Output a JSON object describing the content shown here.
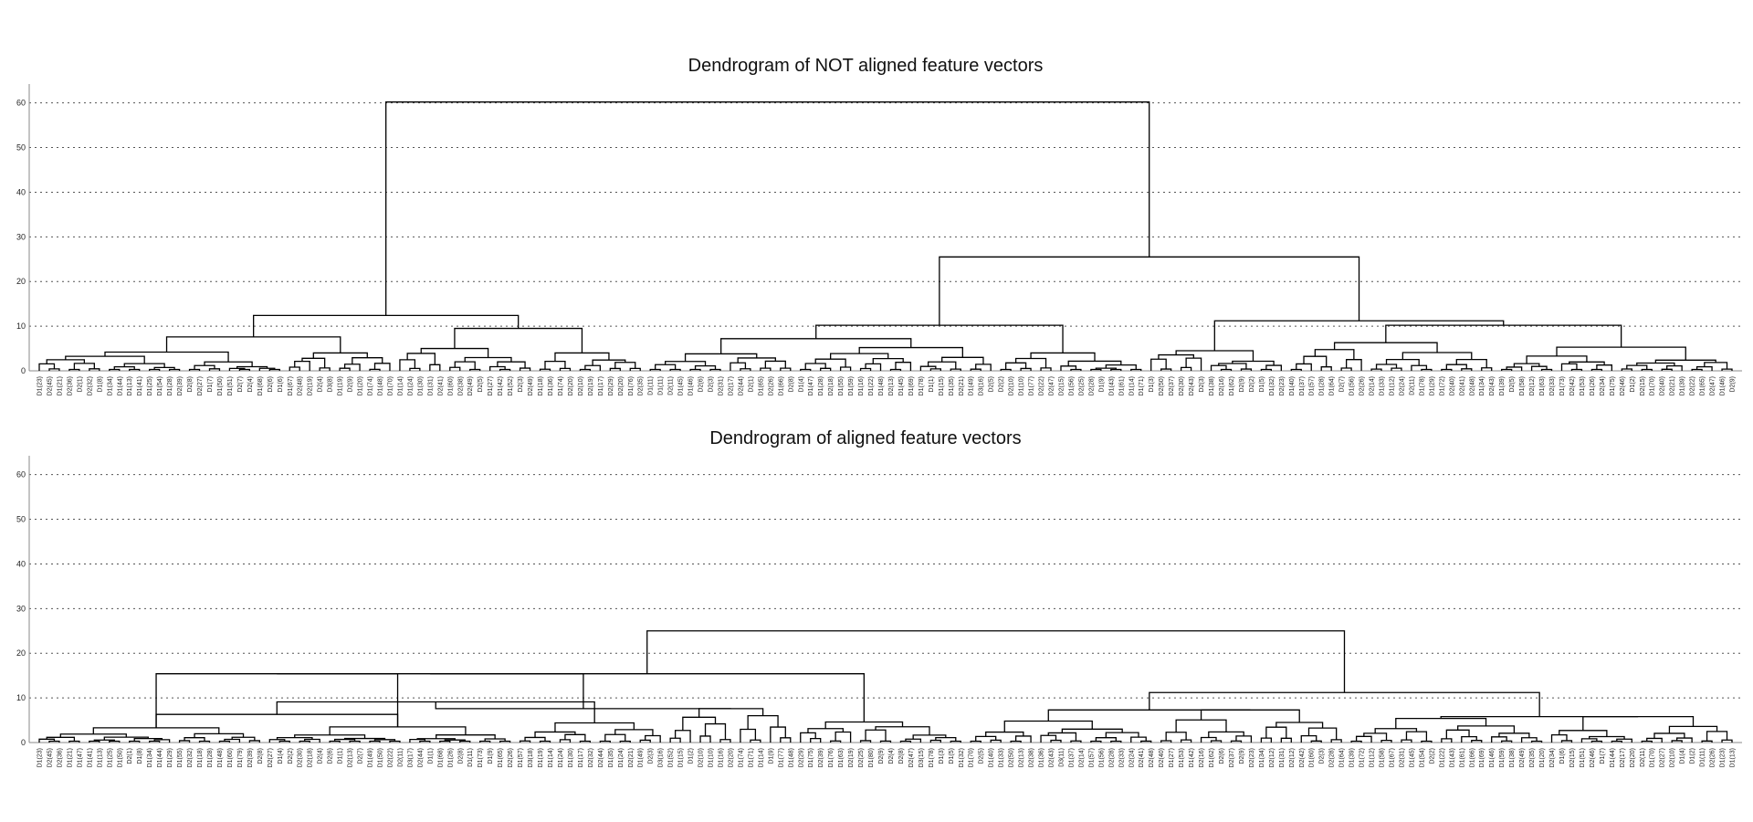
{
  "chart_data": [
    {
      "type": "dendrogram",
      "title": "Dendrogram of NOT aligned feature vectors",
      "xlabel": "",
      "ylabel": "",
      "ylim": [
        0,
        63
      ],
      "yticks": [
        0,
        10,
        20,
        30,
        40,
        50,
        60
      ],
      "grid": "horizontal dotted",
      "leaf_count": 170,
      "leaf_labels": [
        "D1(23)",
        "D2(45)",
        "D1(21)",
        "D2(36)",
        "D2(1)",
        "D2(32)",
        "D1(8)",
        "D1(34)",
        "D1(44)",
        "D1(13)",
        "D1(41)",
        "D1(25)",
        "D1(54)",
        "D1(28)",
        "D2(39)",
        "D2(8)",
        "D2(27)",
        "D1(7)",
        "D1(50)",
        "D1(51)",
        "D2(7)",
        "D2(4)",
        "D1(68)",
        "D2(6)",
        "D1(6)",
        "D1(67)",
        "D2(48)",
        "D2(19)",
        "D2(4)",
        "D3(8)",
        "D1(19)",
        "D2(9)",
        "D1(20)",
        "D1(74)",
        "D1(48)",
        "D1(70)",
        "D1(14)",
        "D1(24)",
        "D1(30)",
        "D1(31)",
        "D2(41)",
        "D1(60)",
        "D2(38)",
        "D2(49)",
        "D2(5)",
        "D1(27)",
        "D1(42)",
        "D1(52)",
        "D2(3)",
        "D2(49)",
        "D1(18)",
        "D1(36)",
        "D1(74)",
        "D2(20)",
        "D2(10)",
        "D2(19)",
        "D1(17)",
        "D2(29)",
        "D2(20)",
        "D1(76)",
        "D2(35)",
        "D1(11)",
        "D1(11)",
        "D2(11)",
        "D1(45)",
        "D1(46)",
        "D2(6)",
        "D2(3)",
        "D2(31)",
        "D2(17)",
        "D2(44)",
        "D2(1)",
        "D1(65)",
        "D2(26)",
        "D1(66)",
        "D2(8)",
        "D1(4)",
        "D1(47)",
        "D1(28)",
        "D2(18)",
        "D1(55)",
        "D1(59)",
        "D1(16)",
        "D1(22)",
        "D1(48)",
        "D2(13)",
        "D1(45)",
        "D1(69)",
        "D1(78)",
        "D1(1)",
        "D1(15)",
        "D1(35)",
        "D2(21)",
        "D1(49)",
        "D3(16)",
        "D2(5)",
        "D2(2)",
        "D2(10)",
        "D1(10)",
        "D1(77)",
        "D2(22)",
        "D2(47)",
        "D2(15)",
        "D1(56)",
        "D2(25)",
        "D2(28)",
        "D1(9)",
        "D1(43)",
        "D1(61)",
        "D1(14)",
        "D1(71)",
        "D1(3)",
        "D2(50)",
        "D2(37)",
        "D2(30)",
        "D2(43)",
        "D2(3)",
        "D1(38)",
        "D2(16)",
        "D1(62)",
        "D2(9)",
        "D2(2)",
        "D1(5)",
        "D1(32)",
        "D2(23)",
        "D1(40)",
        "D1(37)",
        "D1(57)",
        "D1(28)",
        "D1(64)",
        "D2(7)",
        "D1(56)",
        "D2(26)",
        "D2(14)",
        "D1(33)",
        "D1(12)",
        "D2(24)",
        "D2(11)",
        "D1(78)",
        "D1(29)",
        "D1(72)",
        "D2(40)",
        "D2(41)",
        "D2(48)",
        "D1(34)",
        "D2(43)",
        "D1(39)",
        "D2(5)",
        "D1(58)",
        "D2(12)",
        "D1(63)",
        "D2(33)",
        "D1(73)",
        "D2(42)",
        "D1(53)",
        "D1(26)",
        "D2(34)",
        "D1(75)",
        "D2(46)",
        "D1(2)",
        "D2(15)",
        "D1(70)",
        "D2(40)",
        "D2(21)",
        "D1(39)",
        "D2(22)",
        "D1(65)",
        "D2(47)",
        "D1(46)",
        "D2(9)"
      ]
    },
    {
      "type": "dendrogram",
      "title": "Dendrogram of aligned feature vectors",
      "xlabel": "",
      "ylabel": "",
      "ylim": [
        0,
        63
      ],
      "yticks": [
        0,
        10,
        20,
        30,
        40,
        50,
        60
      ],
      "grid": "horizontal dotted",
      "leaf_count": 170,
      "leaf_labels": [
        "D1(23)",
        "D2(45)",
        "D2(36)",
        "D1(21)",
        "D1(47)",
        "D1(41)",
        "D1(13)",
        "D1(25)",
        "D1(50)",
        "D2(1)",
        "D1(8)",
        "D1(34)",
        "D1(44)",
        "D1(29)",
        "D1(55)",
        "D2(32)",
        "D1(18)",
        "D1(28)",
        "D1(48)",
        "D1(60)",
        "D1(79)",
        "D2(39)",
        "D2(8)",
        "D2(27)",
        "D1(4)",
        "D2(2)",
        "D2(30)",
        "D2(18)",
        "D2(4)",
        "D2(6)",
        "D1(1)",
        "D2(13)",
        "D2(7)",
        "D1(49)",
        "D1(50)",
        "D2(22)",
        "D2(11)",
        "D3(17)",
        "D2(44)",
        "D1(1)",
        "D1(68)",
        "D1(26)",
        "D2(8)",
        "D1(11)",
        "D1(73)",
        "D1(9)",
        "D1(65)",
        "D2(26)",
        "D1(57)",
        "D3(18)",
        "D1(19)",
        "D1(14)",
        "D1(24)",
        "D1(30)",
        "D1(17)",
        "D2(32)",
        "D2(44)",
        "D1(35)",
        "D1(24)",
        "D2(21)",
        "D1(49)",
        "D2(3)",
        "D3(16)",
        "D1(52)",
        "D1(15)",
        "D1(2)",
        "D2(10)",
        "D1(10)",
        "D1(16)",
        "D2(20)",
        "D1(74)",
        "D1(71)",
        "D1(14)",
        "D1(9)",
        "D1(77)",
        "D1(48)",
        "D2(29)",
        "D1(75)",
        "D2(39)",
        "D1(76)",
        "D1(63)",
        "D2(19)",
        "D2(25)",
        "D1(80)",
        "D2(9)",
        "D2(4)",
        "D2(8)",
        "D2(47)",
        "D3(15)",
        "D1(78)",
        "D1(3)",
        "D1(5)",
        "D1(32)",
        "D1(70)",
        "D2(5)",
        "D1(40)",
        "D1(33)",
        "D2(50)",
        "D2(13)",
        "D2(38)",
        "D1(36)",
        "D2(43)",
        "D3(11)",
        "D1(37)",
        "D2(14)",
        "D1(57)",
        "D1(56)",
        "D2(28)",
        "D2(33)",
        "D2(24)",
        "D2(41)",
        "D2(48)",
        "D2(40)",
        "D1(27)",
        "D1(53)",
        "D1(42)",
        "D2(16)",
        "D1(62)",
        "D2(6)",
        "D2(37)",
        "D2(9)",
        "D2(23)",
        "D1(34)",
        "D2(12)",
        "D1(31)",
        "D2(12)",
        "D2(42)",
        "D1(60)",
        "D2(3)",
        "D2(28)",
        "D1(64)",
        "D1(39)",
        "D1(72)",
        "D1(12)",
        "D1(58)",
        "D1(67)",
        "D2(31)",
        "D1(45)",
        "D1(54)",
        "D2(2)",
        "D1(22)",
        "D1(43)",
        "D1(61)",
        "D1(66)",
        "D1(69)",
        "D1(46)",
        "D1(59)",
        "D1(38)",
        "D2(49)",
        "D2(35)",
        "D1(20)",
        "D2(34)",
        "D1(6)",
        "D2(15)",
        "D1(51)",
        "D2(46)",
        "D1(7)",
        "D1(44)",
        "D2(17)",
        "D2(20)",
        "D2(11)",
        "D1(70)",
        "D2(27)",
        "D2(10)",
        "D1(4)",
        "D1(2)",
        "D1(11)",
        "D2(26)",
        "D1(23)",
        "D1(13)"
      ]
    }
  ]
}
